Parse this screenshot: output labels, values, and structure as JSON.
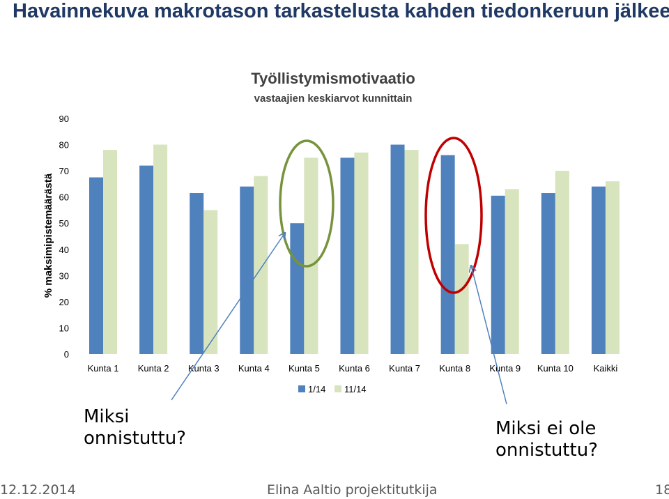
{
  "slide": {
    "title": "Havainnekuva makrotason tarkastelusta kahden tiedonkeruun jälkeen",
    "callout_left": [
      "Miksi",
      "onnistuttu?"
    ],
    "callout_right": [
      "Miksi ei ole",
      "onnistuttu?"
    ],
    "footer": {
      "date": "12.12.2014",
      "author": "Elina Aaltio projektitutkija",
      "page": "18"
    }
  },
  "chart_data": {
    "type": "bar",
    "title": "Työllistymismotivaatio",
    "subtitle": "vastaajien keskiarvot kunnittain",
    "ylabel": "% maksimipistemäärästä",
    "xlabel": "",
    "ylim": [
      0,
      90
    ],
    "yticks": [
      "0",
      "10",
      "20",
      "30",
      "40",
      "50",
      "60",
      "70",
      "80",
      "90"
    ],
    "categories": [
      "Kunta 1",
      "Kunta 2",
      "Kunta 3",
      "Kunta 4",
      "Kunta 5",
      "Kunta 6",
      "Kunta 7",
      "Kunta 8",
      "Kunta 9",
      "Kunta 10",
      "Kaikki"
    ],
    "series": [
      {
        "name": "1/14",
        "color": "#4f81bd",
        "values": [
          67.5,
          72,
          61.5,
          64,
          50,
          75,
          80,
          76,
          60.5,
          61.5,
          64
        ]
      },
      {
        "name": "11/14",
        "color": "#d7e4bd",
        "values": [
          78,
          80,
          55,
          68,
          75,
          77,
          78,
          42,
          63,
          70,
          66
        ]
      }
    ],
    "legend": "bottom",
    "grid": false,
    "highlight_colors": {
      "success": "#77933c",
      "failure": "#c00000",
      "arrows": "#4f81bd"
    }
  }
}
